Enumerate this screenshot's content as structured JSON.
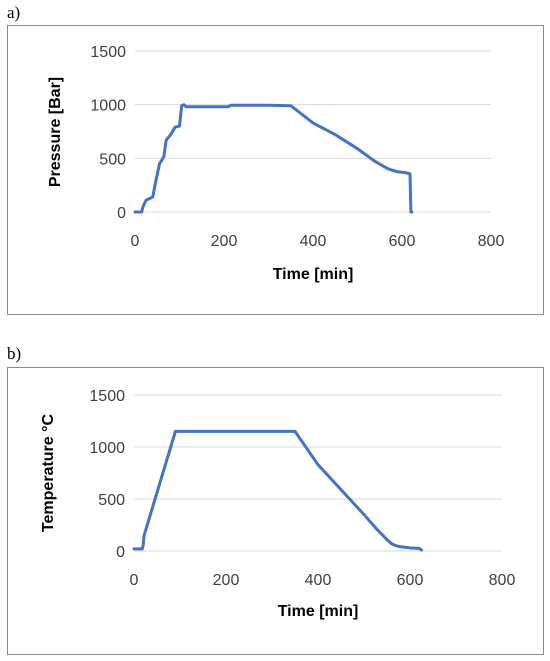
{
  "chart_data": [
    {
      "panel_label": "a)",
      "type": "line",
      "xlabel": "Time [min]",
      "ylabel": "Pressure  [Bar]",
      "xlim": [
        0,
        800
      ],
      "ylim": [
        0,
        1500
      ],
      "xticks": [
        "0",
        "200",
        "400",
        "600",
        "800"
      ],
      "yticks": [
        "0",
        "500",
        "1000",
        "1500"
      ],
      "grid": "horizontal",
      "series": [
        {
          "color": "#4472c4",
          "x": [
            0,
            15,
            18,
            25,
            30,
            40,
            45,
            55,
            60,
            65,
            70,
            80,
            90,
            100,
            105,
            110,
            115,
            210,
            215,
            300,
            350,
            400,
            450,
            500,
            540,
            570,
            590,
            610,
            618,
            620,
            622
          ],
          "y": [
            0,
            0,
            50,
            110,
            120,
            140,
            250,
            450,
            480,
            520,
            670,
            720,
            790,
            800,
            990,
            1000,
            980,
            980,
            995,
            995,
            990,
            830,
            720,
            590,
            470,
            400,
            375,
            365,
            355,
            0,
            0
          ]
        }
      ]
    },
    {
      "panel_label": "b)",
      "type": "line",
      "xlabel": "Time [min]",
      "ylabel": "Temperature °C",
      "xlim": [
        0,
        800
      ],
      "ylim": [
        0,
        1500
      ],
      "xticks": [
        "0",
        "200",
        "400",
        "600",
        "800"
      ],
      "yticks": [
        "0",
        "500",
        "1000",
        "1500"
      ],
      "grid": "horizontal",
      "series": [
        {
          "color": "#4472c4",
          "x": [
            0,
            18,
            20,
            22,
            90,
            95,
            350,
            400,
            450,
            500,
            530,
            550,
            560,
            570,
            580,
            600,
            620,
            625
          ],
          "y": [
            20,
            20,
            60,
            150,
            1150,
            1150,
            1150,
            830,
            590,
            350,
            200,
            110,
            70,
            50,
            40,
            30,
            25,
            10
          ]
        }
      ]
    }
  ]
}
